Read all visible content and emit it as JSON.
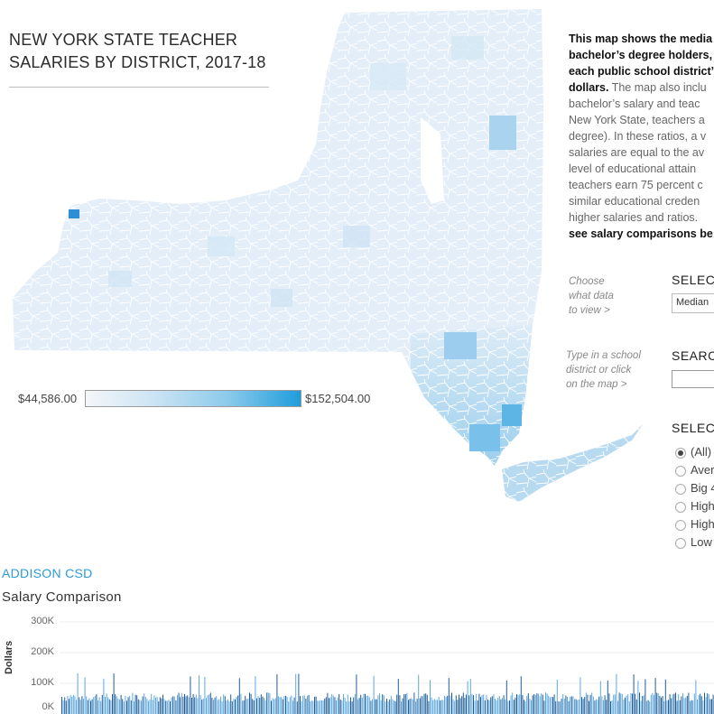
{
  "title": "NEW YORK STATE TEACHER SALARIES BY DISTRICT, 2017-18",
  "legend": {
    "min_label": "$44,586.00",
    "max_label": "$152,504.00",
    "color_low": "#f4f6f8",
    "color_high": "#1e9ddb"
  },
  "description": {
    "lines": [
      {
        "bold": "This map shows the media",
        "rest": ""
      },
      {
        "bold": "bachelor’s degree holders,",
        "rest": ""
      },
      {
        "bold": "each public school district’",
        "rest": ""
      },
      {
        "bold": "dollars.",
        "rest": " The map also inclu"
      },
      {
        "bold": "",
        "rest": "bachelor’s salary and  teac"
      },
      {
        "bold": "",
        "rest": "New York State, teachers a"
      },
      {
        "bold": "",
        "rest": "degree). In these ratios, a v"
      },
      {
        "bold": "",
        "rest": "salaries are equal to the av"
      },
      {
        "bold": "",
        "rest": "level of educational attain"
      },
      {
        "bold": "",
        "rest": "teachers earn 75 percent c"
      },
      {
        "bold": "",
        "rest": "similar educational creden"
      },
      {
        "bold": "",
        "rest": "higher salaries and ratios."
      },
      {
        "bold": "see salary comparisons be",
        "rest": ""
      }
    ]
  },
  "controls": {
    "choose_hint": [
      "Choose",
      "what data",
      "to view >"
    ],
    "select_data_label": "SELEC",
    "select_data_value": "Median",
    "search_hint": [
      "Type in a school",
      "district or click",
      "on the map >"
    ],
    "search_label": "SEARC",
    "select_region_label": "SELEC",
    "radio_options": [
      {
        "label": "(All)",
        "selected": true
      },
      {
        "label": "Aver",
        "selected": false
      },
      {
        "label": "Big 4",
        "selected": false
      },
      {
        "label": "High",
        "selected": false
      },
      {
        "label": "High",
        "selected": false
      },
      {
        "label": "Low",
        "selected": false
      }
    ]
  },
  "selected_district": "ADDISON CSD",
  "comparison": {
    "title": "Salary Comparison",
    "y_axis_label": "Dollars",
    "y_ticks": [
      "300K",
      "200K",
      "100K",
      "0K"
    ],
    "bar_color": "#1f5d99",
    "bar_color_light": "#5fa8dd"
  }
}
